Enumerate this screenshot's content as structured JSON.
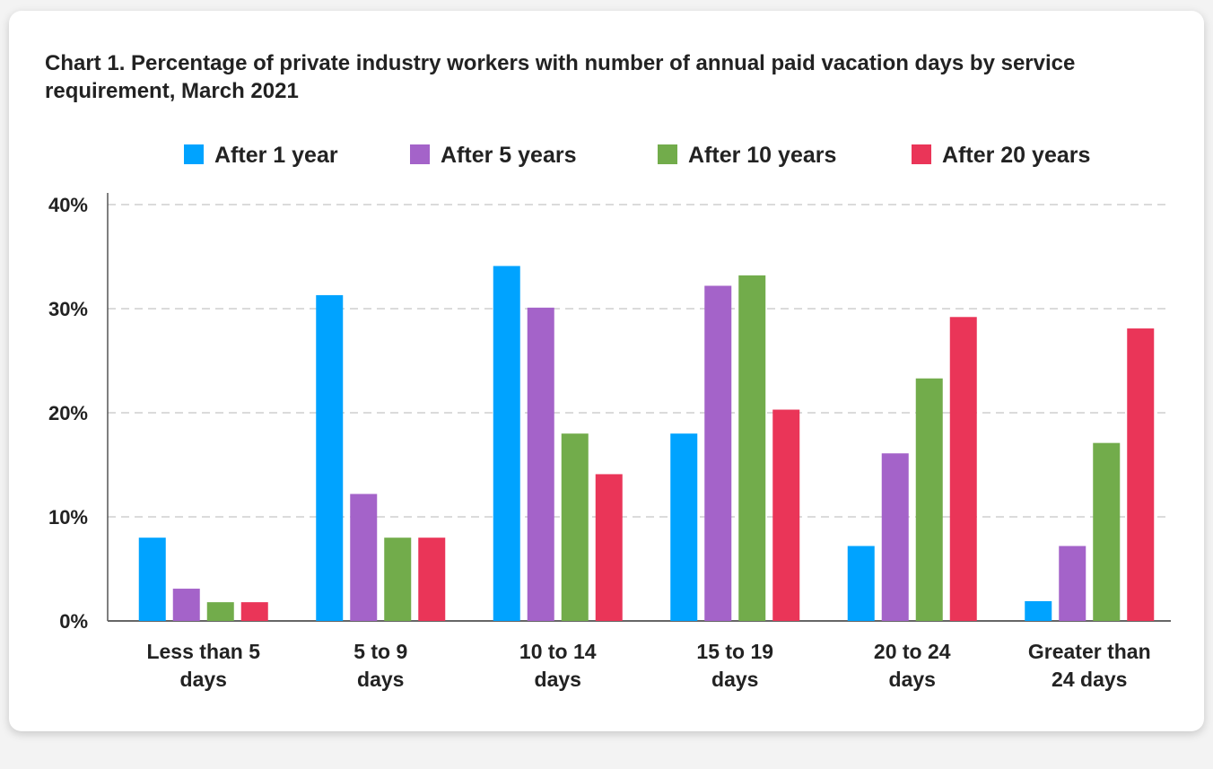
{
  "chart_data": {
    "type": "bar",
    "title": "Chart 1. Percentage of private industry workers with number of annual paid vacation days by service requirement, March 2021",
    "categories": [
      [
        "Less than 5",
        "days"
      ],
      [
        "5 to 9",
        "days"
      ],
      [
        "10 to 14",
        "days"
      ],
      [
        "15 to 19",
        "days"
      ],
      [
        "20 to 24",
        "days"
      ],
      [
        "Greater than",
        "24 days"
      ]
    ],
    "series": [
      {
        "name": "After 1 year",
        "color": "#00A3FF",
        "values": [
          8.0,
          31.3,
          34.1,
          18.0,
          7.2,
          1.9
        ]
      },
      {
        "name": "After 5 years",
        "color": "#A463C9",
        "values": [
          3.1,
          12.2,
          30.1,
          32.2,
          16.1,
          7.2
        ]
      },
      {
        "name": "After 10 years",
        "color": "#72AC4B",
        "values": [
          1.8,
          8.0,
          18.0,
          33.2,
          23.3,
          17.1
        ]
      },
      {
        "name": "After 20 years",
        "color": "#EA3558",
        "values": [
          1.8,
          8.0,
          14.1,
          20.3,
          29.2,
          28.1
        ]
      }
    ],
    "yticks": [
      "0%",
      "10%",
      "20%",
      "30%",
      "40%"
    ],
    "ylim": [
      0,
      40
    ],
    "grid": true,
    "legend": "top"
  }
}
